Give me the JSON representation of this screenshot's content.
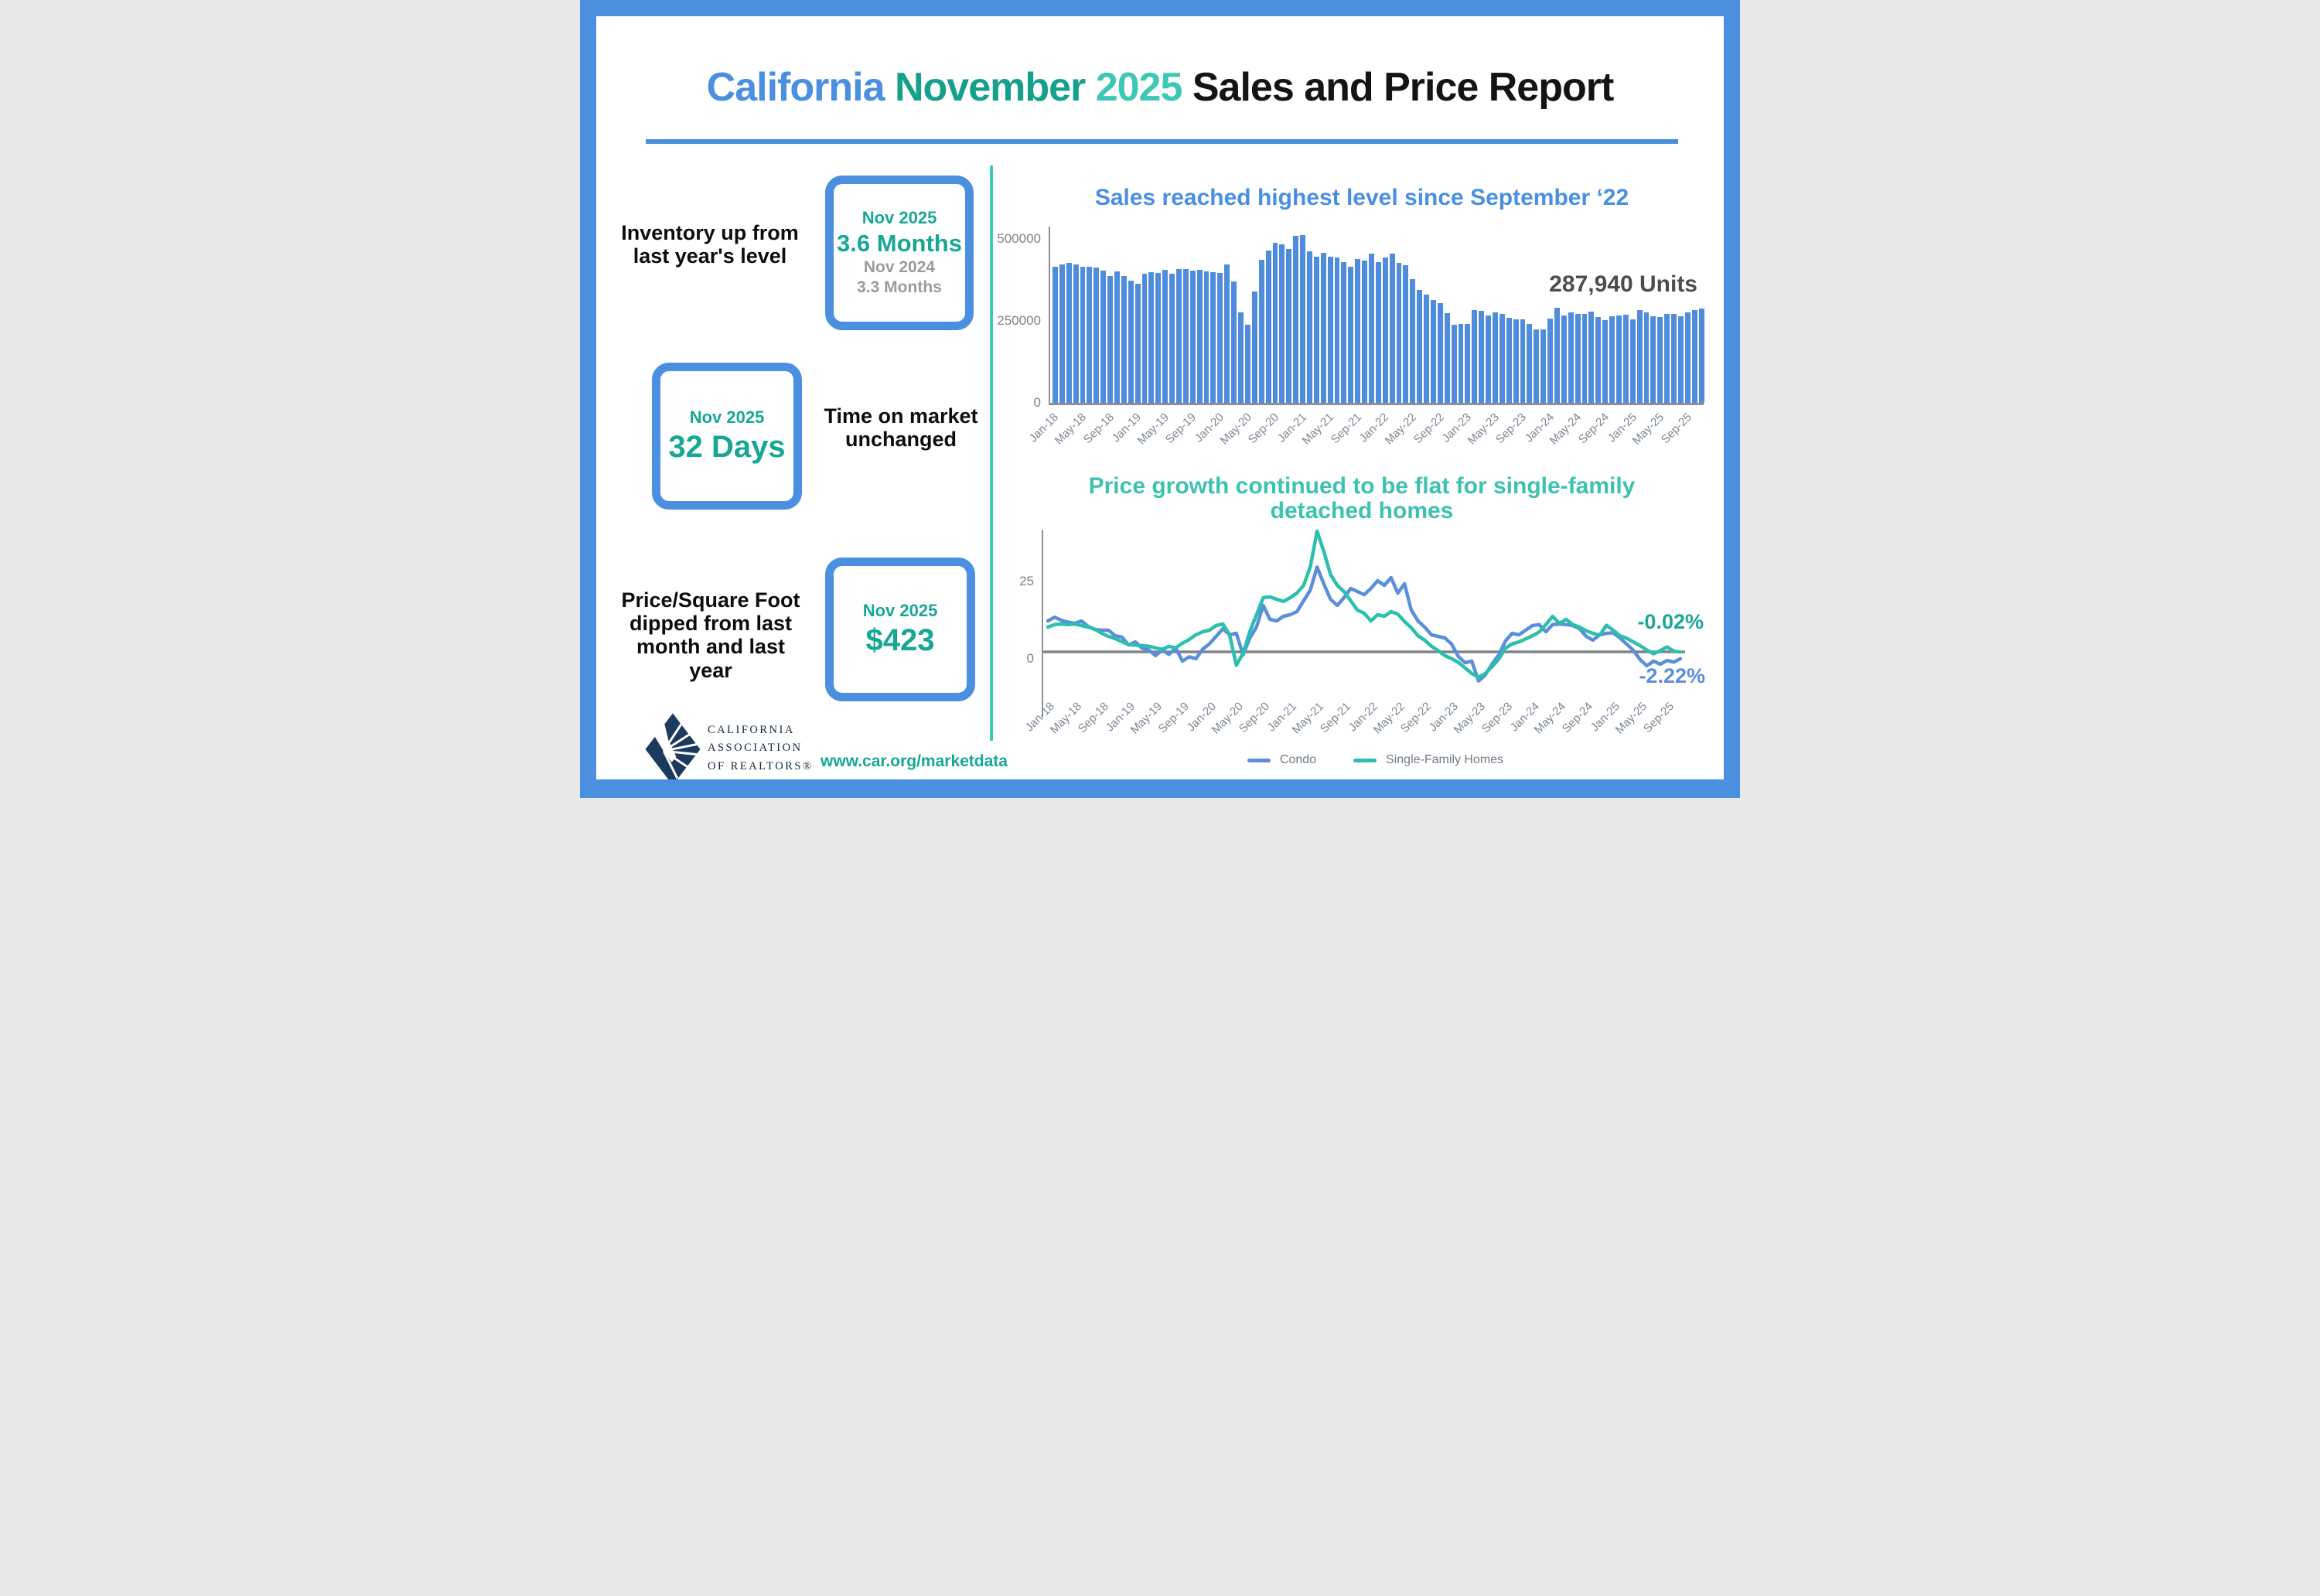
{
  "header": {
    "california": "California",
    "november": "November",
    "year": "2025",
    "rest": "Sales and Price Report"
  },
  "stats": [
    {
      "label": "Inventory up from last year's level",
      "box": {
        "period": "Nov 2025",
        "value": "3.6 Months",
        "prev_period": "Nov 2024",
        "prev_value": "3.3 Months"
      }
    },
    {
      "label": "Time on market unchanged",
      "box": {
        "period": "Nov 2025",
        "value": "32 Days"
      }
    },
    {
      "label": "Price/Square Foot dipped from last month and last year",
      "box": {
        "period": "Nov 2025",
        "value": "$423"
      }
    }
  ],
  "footer": {
    "org_line1": "CALIFORNIA",
    "org_line2": "ASSOCIATION",
    "org_line3": "OF REALTORS®",
    "url": "www.car.org/marketdata"
  },
  "colors": {
    "accent_blue": "#4a8fe0",
    "bar_blue": "#4f8cdc",
    "line_blue": "#5b8fd9",
    "line_teal": "#2bbfae",
    "teal_text": "#17a795",
    "divider_teal": "#3cc8bc",
    "gray_text": "#9b9b9b",
    "tick_gray": "#7c8793",
    "units_gray": "#4d4d4f",
    "logo_navy": "#1c3a5e"
  },
  "chart_data": [
    {
      "type": "bar",
      "title": "Sales reached highest level since September ‘22",
      "annotation": "287,940 Units",
      "ylabel": "",
      "ylim": [
        0,
        537500
      ],
      "yticks": [
        {
          "v": 0,
          "label": "0"
        },
        {
          "v": 250000,
          "label": "250000"
        },
        {
          "v": 500000,
          "label": "500000"
        }
      ],
      "tick_every": 4,
      "x_tick_labels": [
        "Jan-18",
        "May-18",
        "Sep-18",
        "Jan-19",
        "May-19",
        "Sep-19",
        "Jan-20",
        "May-20",
        "Sep-20",
        "Jan-21",
        "May-21",
        "Sep-21",
        "Jan-22",
        "May-22",
        "Sep-22",
        "Jan-23",
        "May-23",
        "Sep-23",
        "Jan-24",
        "May-24",
        "Sep-24",
        "Jan-25",
        "May-25",
        "Sep-25"
      ],
      "months": [
        "Jan-18",
        "Feb-18",
        "Mar-18",
        "Apr-18",
        "May-18",
        "Jun-18",
        "Jul-18",
        "Aug-18",
        "Sep-18",
        "Oct-18",
        "Nov-18",
        "Dec-18",
        "Jan-19",
        "Feb-19",
        "Mar-19",
        "Apr-19",
        "May-19",
        "Jun-19",
        "Jul-19",
        "Aug-19",
        "Sep-19",
        "Oct-19",
        "Nov-19",
        "Dec-19",
        "Jan-20",
        "Feb-20",
        "Mar-20",
        "Apr-20",
        "May-20",
        "Jun-20",
        "Jul-20",
        "Aug-20",
        "Sep-20",
        "Oct-20",
        "Nov-20",
        "Dec-20",
        "Jan-21",
        "Feb-21",
        "Mar-21",
        "Apr-21",
        "May-21",
        "Jun-21",
        "Jul-21",
        "Aug-21",
        "Sep-21",
        "Oct-21",
        "Nov-21",
        "Dec-21",
        "Jan-22",
        "Feb-22",
        "Mar-22",
        "Apr-22",
        "May-22",
        "Jun-22",
        "Jul-22",
        "Aug-22",
        "Sep-22",
        "Oct-22",
        "Nov-22",
        "Dec-22",
        "Jan-23",
        "Feb-23",
        "Mar-23",
        "Apr-23",
        "May-23",
        "Jun-23",
        "Jul-23",
        "Aug-23",
        "Sep-23",
        "Oct-23",
        "Nov-23",
        "Dec-23",
        "Jan-24",
        "Feb-24",
        "Mar-24",
        "Apr-24",
        "May-24",
        "Jun-24",
        "Jul-24",
        "Aug-24",
        "Sep-24",
        "Oct-24",
        "Nov-24",
        "Dec-24",
        "Jan-25",
        "Feb-25",
        "Mar-25",
        "Apr-25",
        "May-25",
        "Jun-25",
        "Jul-25",
        "Aug-25",
        "Sep-25",
        "Oct-25",
        "Nov-25"
      ],
      "values": [
        416000,
        423000,
        427000,
        421000,
        416000,
        415000,
        412000,
        404000,
        386000,
        401000,
        387000,
        373000,
        363000,
        393000,
        398000,
        396000,
        406000,
        393000,
        408000,
        407000,
        404000,
        405000,
        400000,
        398000,
        397000,
        421000,
        369000,
        277000,
        238000,
        339000,
        437000,
        465000,
        489000,
        484000,
        469000,
        509000,
        511000,
        462000,
        446000,
        458000,
        446000,
        444000,
        428000,
        414000,
        438000,
        434000,
        454000,
        429000,
        444000,
        456000,
        426000,
        419000,
        377000,
        344000,
        330000,
        313000,
        305000,
        274000,
        237000,
        240000,
        241000,
        284000,
        281000,
        267000,
        277000,
        270000,
        260000,
        254000,
        254000,
        241000,
        223000,
        224000,
        256000,
        290000,
        267000,
        275000,
        272000,
        270000,
        279000,
        262000,
        253000,
        264000,
        267000,
        268000,
        254000,
        283000,
        277000,
        265000,
        262000,
        270000,
        272000,
        265000,
        277000,
        283000,
        287940
      ]
    },
    {
      "type": "line",
      "title_line1": "Price growth continued to be flat for single-family",
      "title_line2": "detached homes",
      "yticks": [
        {
          "v": 0,
          "label": "0"
        },
        {
          "v": 25,
          "label": "25"
        }
      ],
      "tick_every": 4,
      "x_tick_labels": [
        "Jan-18",
        "May-18",
        "Sep-18",
        "Jan-19",
        "May-19",
        "Sep-19",
        "Jan-20",
        "May-20",
        "Sep-20",
        "Jan-21",
        "May-21",
        "Sep-21",
        "Jan-22",
        "May-22",
        "Sep-22",
        "Jan-23",
        "May-23",
        "Sep-23",
        "Jan-24",
        "May-24",
        "Sep-24",
        "Jan-25",
        "May-25",
        "Sep-25"
      ],
      "series": [
        {
          "name": "Condo",
          "color": "#5b8fd9",
          "values": [
            10,
            11.2,
            10.2,
            9.6,
            9.2,
            10,
            8.2,
            7.2,
            7,
            7,
            5.2,
            4.8,
            2.2,
            3.2,
            1.2,
            0.6,
            -1.2,
            0.6,
            -0.8,
            1.2,
            -3,
            -1.6,
            -2.2,
            0.8,
            2.6,
            5,
            7.5,
            5.5,
            6,
            -1,
            4.5,
            8,
            15,
            10.5,
            10,
            11.5,
            12,
            13,
            16.5,
            20,
            27.4,
            22,
            17,
            15,
            17.5,
            20.5,
            19.5,
            18.5,
            20.5,
            23,
            21.5,
            24,
            19,
            22,
            13.5,
            10,
            8,
            5.5,
            5,
            4.5,
            2.5,
            -1.5,
            -3.5,
            -3,
            -9.4,
            -7.5,
            -4,
            -1,
            3.5,
            6,
            5.5,
            7,
            8.5,
            8.8,
            6.5,
            8.8,
            9,
            8.8,
            8.5,
            7.5,
            5,
            3.8,
            5.5,
            6,
            6.2,
            4.5,
            2.5,
            0.5,
            -2.5,
            -4.5,
            -3,
            -4,
            -2.8,
            -3.3,
            -2.22
          ]
        },
        {
          "name": "Single-Family Homes",
          "color": "#2bbfae",
          "values": [
            8,
            8.8,
            9,
            8.8,
            9,
            8.5,
            8,
            7.3,
            6,
            5,
            4.3,
            3.3,
            2.3,
            2.2,
            2,
            1.8,
            1.3,
            0.8,
            1.8,
            1.3,
            2.8,
            4,
            5.5,
            6.5,
            7,
            8.5,
            9,
            5.5,
            -4.3,
            -0.5,
            6.5,
            12,
            17.5,
            17.8,
            17,
            16.3,
            17.5,
            19,
            21.5,
            27.5,
            39,
            32.5,
            25,
            21.5,
            19.5,
            16.5,
            13.5,
            12.5,
            10,
            12,
            11.5,
            13,
            12.2,
            9.8,
            7.8,
            5.2,
            3.8,
            1.8,
            0.4,
            -1.2,
            -2.2,
            -3.4,
            -5.2,
            -7,
            -8.2,
            -7,
            -4.8,
            -2.4,
            1.2,
            2.6,
            3.2,
            4.2,
            5.2,
            6.4,
            8.8,
            11.5,
            9.2,
            10.5,
            8.8,
            8,
            6.8,
            6,
            5.4,
            8.6,
            7,
            5.2,
            4.4,
            3.2,
            2,
            0.6,
            -0.6,
            0.4,
            1.6,
            0.2,
            -0.02
          ]
        }
      ],
      "annotations": [
        {
          "text": "-0.02%",
          "color": "#1aa796"
        },
        {
          "text": "-2.22%",
          "color": "#5b8fd9"
        }
      ]
    }
  ]
}
